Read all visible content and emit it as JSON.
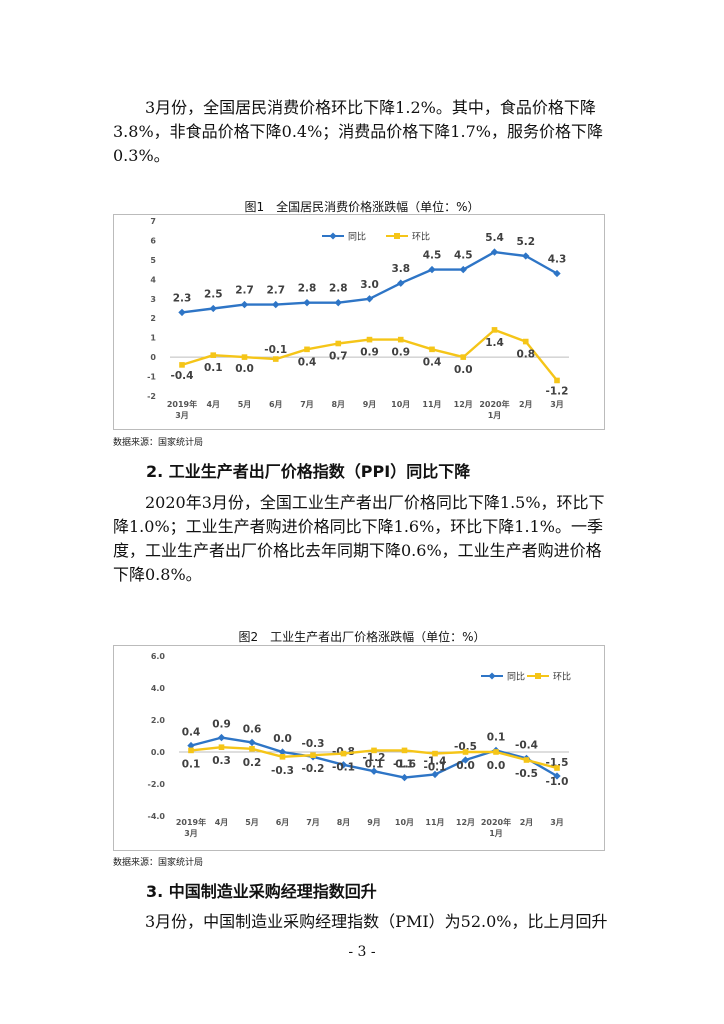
{
  "paragraphs": {
    "p1": "3月份，全国居民消费价格环比下降1.2%。其中，食品价格下降3.8%，非食品价格下降0.4%；消费品价格下降1.7%，服务价格下降0.3%。",
    "p2": "2020年3月份，全国工业生产者出厂价格同比下降1.5%，环比下降1.0%；工业生产者购进价格同比下降1.6%，环比下降1.1%。一季度，工业生产者出厂价格比去年同期下降0.6%，工业生产者购进价格下降0.8%。",
    "p3": "3月份，中国制造业采购经理指数（PMI）为52.0%，比上月回升"
  },
  "headings": {
    "h2": "2. 工业生产者出厂价格指数（PPI）同比下降",
    "h3": "3. 中国制造业采购经理指数回升"
  },
  "figures": {
    "fig1_caption": "图1　全国居民消费价格涨跌幅（单位：%）",
    "fig2_caption": "图2　工业生产者出厂价格涨跌幅（单位：%）",
    "source1": "数据来源：国家统计局",
    "source2": "数据来源：国家统计局"
  },
  "page_number": "- 3 -",
  "chart_data": [
    {
      "type": "line",
      "categories": [
        "2019年3月",
        "4月",
        "5月",
        "6月",
        "7月",
        "8月",
        "9月",
        "10月",
        "11月",
        "12月",
        "2020年1月",
        "2月",
        "3月"
      ],
      "category_lines": [
        [
          "2019年",
          "3月"
        ],
        [
          "4月"
        ],
        [
          "5月"
        ],
        [
          "6月"
        ],
        [
          "7月"
        ],
        [
          "8月"
        ],
        [
          "9月"
        ],
        [
          "10月"
        ],
        [
          "11月"
        ],
        [
          "12月"
        ],
        [
          "2020年",
          "1月"
        ],
        [
          "2月"
        ],
        [
          "3月"
        ]
      ],
      "series": [
        {
          "name": "同比",
          "color": "#2E75C6",
          "values": [
            2.3,
            2.5,
            2.7,
            2.7,
            2.8,
            2.8,
            3.0,
            3.8,
            4.5,
            4.5,
            5.4,
            5.2,
            4.3
          ],
          "labels": [
            "2.3",
            "2.5",
            "2.7",
            "2.7",
            "2.8",
            "2.8",
            "3.0",
            "3.8",
            "4.5",
            "4.5",
            "5.4",
            "5.2",
            "4.3"
          ]
        },
        {
          "name": "环比",
          "color": "#F5C518",
          "values": [
            -0.4,
            0.1,
            0.0,
            -0.1,
            0.4,
            0.7,
            0.9,
            0.9,
            0.4,
            0.0,
            1.4,
            0.8,
            -1.2
          ],
          "labels": [
            "-0.4",
            "0.1",
            "0.0",
            "-0.1",
            "0.4",
            "0.7",
            "0.9",
            "0.9",
            "0.4",
            "0.0",
            "1.4",
            "0.8",
            "-1.2"
          ]
        }
      ],
      "yticks": [
        "7",
        "6",
        "5",
        "4",
        "3",
        "2",
        "1",
        "0",
        "-1",
        "-2"
      ],
      "ylim": [
        -2,
        7
      ],
      "grid": false,
      "legend": "top-center"
    },
    {
      "type": "line",
      "categories": [
        "2019年3月",
        "4月",
        "5月",
        "6月",
        "7月",
        "8月",
        "9月",
        "10月",
        "11月",
        "12月",
        "2020年1月",
        "2月",
        "3月"
      ],
      "category_lines": [
        [
          "2019年",
          "3月"
        ],
        [
          "4月"
        ],
        [
          "5月"
        ],
        [
          "6月"
        ],
        [
          "7月"
        ],
        [
          "8月"
        ],
        [
          "9月"
        ],
        [
          "10月"
        ],
        [
          "11月"
        ],
        [
          "12月"
        ],
        [
          "2020年",
          "1月"
        ],
        [
          "2月"
        ],
        [
          "3月"
        ]
      ],
      "series": [
        {
          "name": "同比",
          "color": "#2E75C6",
          "values": [
            0.4,
            0.9,
            0.6,
            0.0,
            -0.3,
            -0.8,
            -1.2,
            -1.6,
            -1.4,
            -0.5,
            0.1,
            -0.4,
            -1.5
          ],
          "labels": [
            "0.4",
            "0.9",
            "0.6",
            "0.0",
            "-0.3",
            "-0.8",
            "-1.2",
            "-1.6",
            "-1.4",
            "-0.5",
            "0.1",
            "-0.4",
            "-1.5"
          ]
        },
        {
          "name": "环比",
          "color": "#F5C518",
          "values": [
            0.1,
            0.3,
            0.2,
            -0.3,
            -0.2,
            -0.1,
            0.1,
            0.1,
            -0.1,
            0.0,
            0.0,
            -0.5,
            -1.0
          ],
          "labels": [
            "0.1",
            "0.3",
            "0.2",
            "-0.3",
            "-0.2",
            "-0.1",
            "0.1",
            "0.1",
            "-0.1",
            "0.0",
            "0.0",
            "-0.5",
            "-1.0"
          ]
        }
      ],
      "yticks": [
        "6.0",
        "4.0",
        "2.0",
        "0.0",
        "-2.0",
        "-4.0"
      ],
      "ylim": [
        -4,
        6
      ],
      "grid": false,
      "legend": "top-right"
    }
  ]
}
